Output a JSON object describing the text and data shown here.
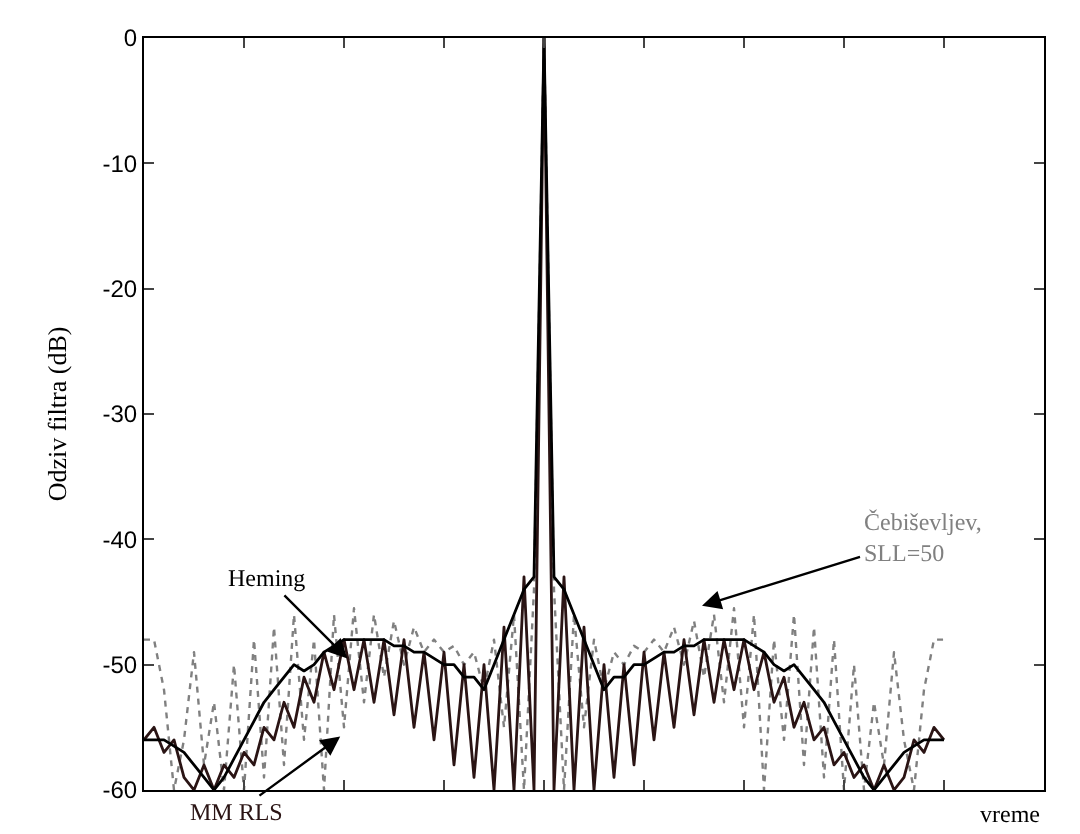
{
  "chart_data": {
    "type": "line",
    "ylabel": "Odziv filtra (dB)",
    "xlabel": "vreme",
    "categories": [
      null,
      null,
      null,
      null,
      null,
      null,
      null,
      null,
      null,
      null,
      null,
      null,
      null,
      null,
      null,
      null,
      null,
      null,
      null,
      null,
      null,
      null,
      null,
      null,
      null,
      null,
      null,
      null,
      null,
      null,
      null,
      null,
      null,
      null,
      null,
      null,
      null,
      null,
      null,
      null,
      null,
      null,
      null,
      null,
      null,
      null,
      null,
      null,
      null,
      null,
      null,
      null,
      null,
      null,
      null,
      null,
      null,
      null,
      null,
      null,
      null,
      null,
      null,
      null,
      null,
      null,
      null,
      null,
      null,
      null,
      null,
      null,
      null,
      null,
      null,
      null,
      null,
      null,
      null,
      null,
      null,
      null,
      null,
      null,
      null,
      null,
      null,
      null,
      null,
      null,
      null
    ],
    "ylim": [
      -60,
      0
    ],
    "yticks": [
      0,
      -10,
      -20,
      -30,
      -40,
      -50,
      -60
    ],
    "tick_labels": "y",
    "legend": false,
    "marker": "none",
    "series": [
      {
        "name": "Čebiševljev, SLL=50",
        "color": "#808080",
        "line_style": "dotted",
        "values": [
          -48,
          -48,
          -52,
          -60,
          -56,
          -49,
          -58,
          -53,
          -60,
          -50,
          -60,
          -48,
          -59,
          -47,
          -58,
          -46,
          -56,
          -48,
          -60,
          -46,
          -55,
          -45.5,
          -53,
          -46,
          -51,
          -46.5,
          -50,
          -47,
          -49,
          -48,
          -49,
          -48.5,
          -50,
          -49,
          -52,
          -48,
          -55,
          -46,
          -60,
          -44,
          0,
          -44,
          -60,
          -46,
          -55,
          -48,
          -52,
          -49,
          -50,
          -48.5,
          -49,
          -48,
          -49,
          -47,
          -50,
          -46.5,
          -51,
          -46,
          -53,
          -45.5,
          -55,
          -46,
          -60,
          -48,
          -56,
          -46,
          -58,
          -47,
          -59,
          -48,
          -60,
          -50,
          -60,
          -53,
          -58,
          -49,
          -56,
          -60,
          -52,
          -48,
          -48,
          null,
          null,
          null,
          null,
          null,
          null,
          null,
          null,
          null,
          null
        ]
      },
      {
        "name": "MM RLS",
        "color": "#2a1414",
        "line_style": "solid",
        "values": [
          -56,
          -55,
          -57,
          -56,
          -59,
          -60,
          -58,
          -60,
          -58,
          -59,
          -57,
          -58,
          -55,
          -56,
          -53,
          -55,
          -51,
          -53,
          -49,
          -52,
          -48,
          -52,
          -48,
          -53,
          -48,
          -54,
          -48,
          -55,
          -49,
          -56,
          -49,
          -58,
          -50,
          -59,
          -50,
          -60,
          -47,
          -60,
          -43,
          -60,
          0,
          -60,
          -43,
          -60,
          -47,
          -60,
          -50,
          -59,
          -50,
          -58,
          -49,
          -56,
          -49,
          -55,
          -48,
          -54,
          -48,
          -53,
          -48,
          -52,
          -48,
          -52,
          -49,
          -53,
          -51,
          -55,
          -53,
          -56,
          -55,
          -58,
          -57,
          -59,
          -58,
          -60,
          -58,
          -60,
          -59,
          -56,
          -57,
          -55,
          -56,
          null,
          null,
          null,
          null,
          null,
          null,
          null,
          null,
          null,
          null
        ]
      },
      {
        "name": "Heming",
        "color": "#000000",
        "line_style": "solid",
        "values": [
          -56,
          -56,
          -56,
          -56.5,
          -57,
          -58,
          -59,
          -60,
          -59,
          -57.5,
          -56,
          -54.5,
          -53,
          -52,
          -51,
          -50,
          -50.5,
          -50,
          -49,
          -48.5,
          -48,
          -48,
          -48,
          -48,
          -48,
          -48.5,
          -48.5,
          -49,
          -49,
          -49.5,
          -50,
          -50,
          -51,
          -51,
          -52,
          -50,
          -48,
          -46,
          -44,
          -43,
          0,
          -43,
          -44,
          -46,
          -48,
          -50,
          -52,
          -51,
          -51,
          -50,
          -50,
          -49.5,
          -49,
          -49,
          -48.5,
          -48.5,
          -48,
          -48,
          -48,
          -48,
          -48,
          -48.5,
          -49,
          -50,
          -50.5,
          -50,
          -51,
          -52,
          -53,
          -54.5,
          -56,
          -57.5,
          -59,
          -60,
          -59,
          -58,
          -57,
          -56.5,
          -56,
          -56,
          -56,
          null,
          null,
          null,
          null,
          null,
          null,
          null,
          null,
          null,
          null
        ]
      }
    ]
  }
}
